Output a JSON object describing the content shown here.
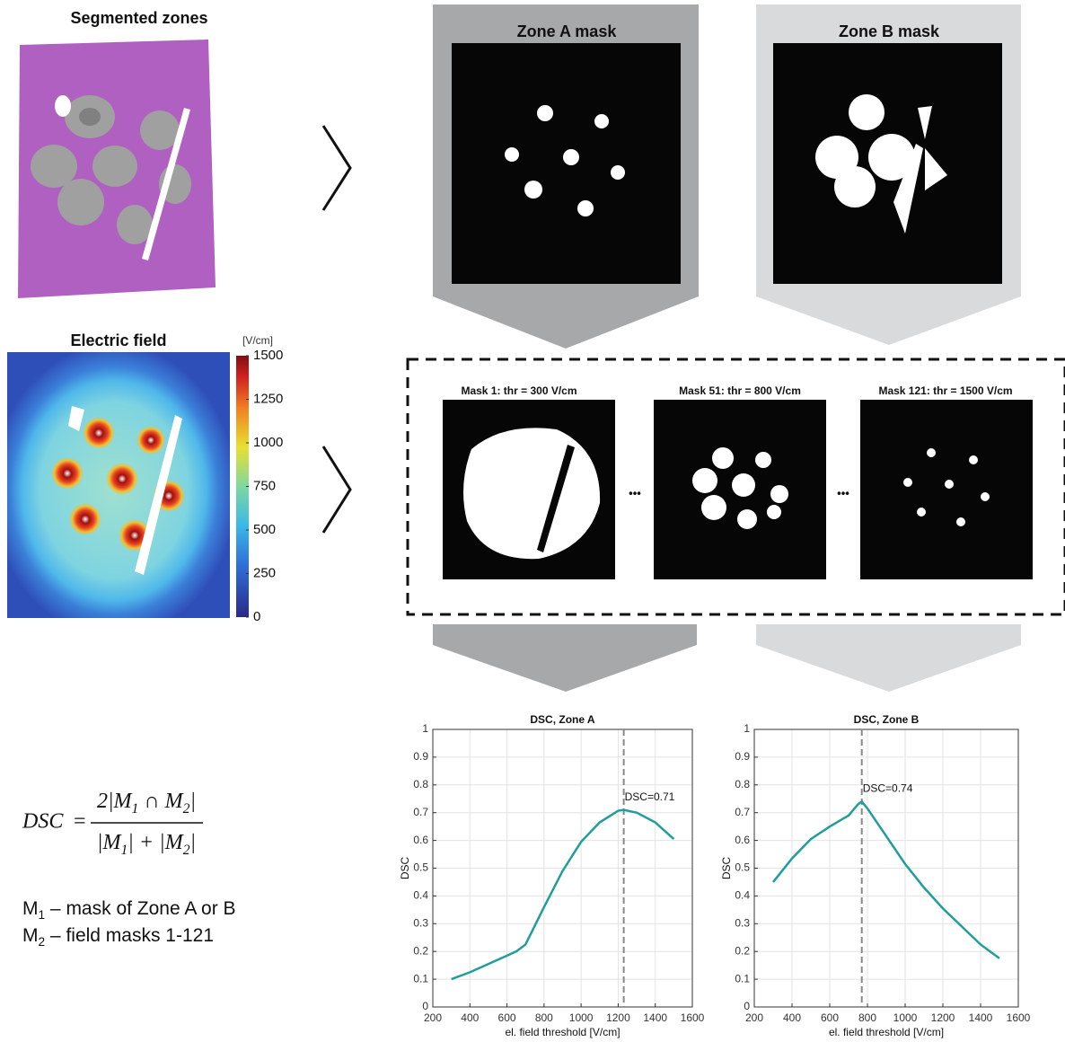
{
  "panels": {
    "segmented_title": "Segmented zones",
    "field_title": "Electric field",
    "zone_a_title": "Zone A mask",
    "zone_b_title": "Zone B mask",
    "mask_titles": [
      "Mask 1: thr = 300 V/cm",
      "Mask 51: thr = 800 V/cm",
      "Mask 121: thr = 1500 V/cm"
    ],
    "ellipsis": "•••"
  },
  "colorbar": {
    "label": "[V/cm]",
    "lim": [
      0,
      1500
    ],
    "ticks": [
      0,
      250,
      500,
      750,
      1000,
      1250,
      1500
    ]
  },
  "formula": {
    "lhs": "DSC",
    "equals": "=",
    "numerator": [
      {
        "text": "2|M"
      },
      {
        "sub": "1"
      },
      {
        "text": " ∩ M"
      },
      {
        "sub": "2"
      },
      {
        "text": "|"
      }
    ],
    "denominator": [
      {
        "text": "|M"
      },
      {
        "sub": "1"
      },
      {
        "text": "| + |M"
      },
      {
        "sub": "2"
      },
      {
        "text": "|"
      }
    ]
  },
  "legend_lines": [
    [
      {
        "text": "M"
      },
      {
        "sub": "1"
      },
      {
        "text": " – mask of Zone A or B"
      }
    ],
    [
      {
        "text": "M"
      },
      {
        "sub": "2"
      },
      {
        "text": " – field masks 1-121"
      }
    ]
  ],
  "chart_data": [
    {
      "type": "line",
      "title": "DSC, Zone A",
      "x_label": "el. field threshold [V/cm]",
      "y_label": "DSC",
      "color": "#1f9e9c",
      "grid": true,
      "x": [
        300,
        400,
        500,
        600,
        650,
        700,
        800,
        900,
        1000,
        1100,
        1200,
        1230,
        1300,
        1400,
        1500
      ],
      "values": [
        0.1,
        0.125,
        0.155,
        0.185,
        0.2,
        0.225,
        0.36,
        0.49,
        0.595,
        0.665,
        0.707,
        0.71,
        0.7,
        0.665,
        0.605
      ],
      "vline": 1230,
      "annotation": "DSC=0.71",
      "xlim": [
        200,
        1600
      ],
      "xticks": [
        200,
        400,
        600,
        800,
        1000,
        1200,
        1400,
        1600
      ],
      "ylim": [
        0,
        1
      ],
      "yticks": [
        0,
        0.1,
        0.2,
        0.3,
        0.4,
        0.5,
        0.6,
        0.7,
        0.8,
        0.9,
        1
      ]
    },
    {
      "type": "line",
      "title": "DSC, Zone B",
      "x_label": "el. field threshold [V/cm]",
      "y_label": "DSC",
      "color": "#1f9e9c",
      "grid": true,
      "x": [
        300,
        400,
        500,
        600,
        700,
        750,
        770,
        800,
        900,
        1000,
        1100,
        1200,
        1300,
        1400,
        1500
      ],
      "values": [
        0.45,
        0.535,
        0.605,
        0.65,
        0.69,
        0.73,
        0.74,
        0.715,
        0.615,
        0.515,
        0.43,
        0.355,
        0.29,
        0.225,
        0.175
      ],
      "vline": 770,
      "annotation": "DSC=0.74",
      "xlim": [
        200,
        1600
      ],
      "xticks": [
        200,
        400,
        600,
        800,
        1000,
        1200,
        1400,
        1600
      ],
      "ylim": [
        0,
        1
      ],
      "yticks": [
        0,
        0.1,
        0.2,
        0.3,
        0.4,
        0.5,
        0.6,
        0.7,
        0.8,
        0.9,
        1
      ]
    }
  ]
}
